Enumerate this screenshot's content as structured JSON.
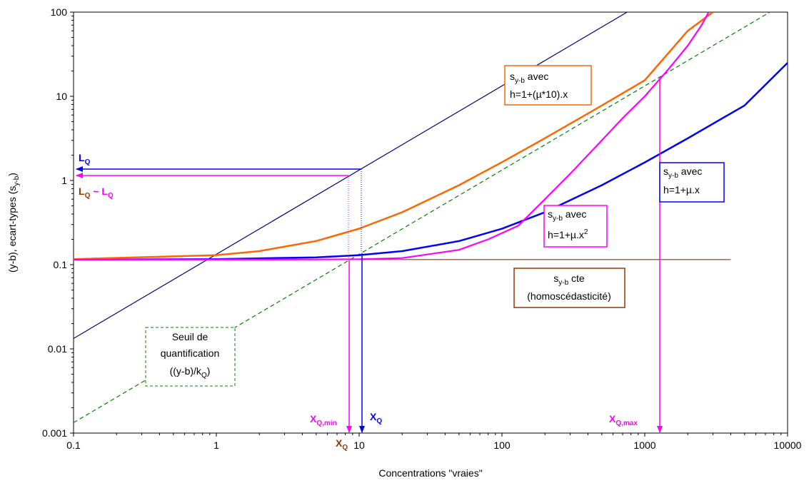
{
  "chart_data": {
    "type": "line",
    "xscale": "log",
    "yscale": "log",
    "xlim": [
      0.1,
      10000
    ],
    "ylim": [
      0.001,
      100
    ],
    "xlabel": "Concentrations \"vraies\"",
    "ylabel": "(y-b), ecart-types (s",
    "ylabel_sub": "y-b",
    "ylabel_end": ")",
    "x_ticks": [
      "0.1",
      "1",
      "10",
      "100",
      "1000",
      "10000"
    ],
    "y_ticks": [
      "0.001",
      "0.01",
      "0.1",
      "1",
      "10",
      "100"
    ],
    "grid": false,
    "legend": "none",
    "series": [
      {
        "key": "yb",
        "color": "#000080",
        "x": [
          0.1,
          10000
        ],
        "y": [
          0.0133,
          1330
        ]
      },
      {
        "key": "seuil",
        "color": "#008000",
        "dashed": true,
        "x": [
          0.1,
          10000
        ],
        "y": [
          0.00133,
          133
        ]
      },
      {
        "key": "cte",
        "color": "#993300",
        "x": [
          0.1,
          4000
        ],
        "y": [
          0.115,
          0.115
        ]
      },
      {
        "key": "lin",
        "color": "#0000ff",
        "x": [
          0.1,
          1,
          5,
          10,
          20,
          50,
          100,
          200,
          500,
          1000,
          2000,
          5000,
          10000
        ],
        "y": [
          0.1151,
          0.1164,
          0.1223,
          0.1299,
          0.145,
          0.1908,
          0.2674,
          0.4205,
          0.8796,
          1.64,
          3.17,
          7.79,
          25
        ]
      },
      {
        "key": "mu10",
        "color": "#ff6600",
        "x": [
          0.1,
          1,
          2,
          5,
          10,
          20,
          50,
          100,
          200,
          500,
          1000,
          2000,
          3000
        ],
        "y": [
          0.1164,
          0.13,
          0.145,
          0.191,
          0.268,
          0.42,
          0.88,
          1.65,
          3.18,
          7.78,
          15.5,
          60,
          100
        ]
      },
      {
        "key": "quad",
        "color": "#ff00ff",
        "x": [
          0.1,
          5,
          10,
          20,
          50,
          80,
          130,
          200,
          300,
          500,
          700,
          1000,
          1500,
          2000,
          2500,
          2800
        ],
        "y": [
          0.115,
          0.1153,
          0.1163,
          0.12,
          0.15,
          0.2,
          0.29,
          0.6,
          1.2,
          3,
          5.5,
          10,
          22,
          40,
          70,
          100
        ]
      }
    ],
    "annotations": {
      "lq": "L",
      "lq_sub": "Q",
      "lq2_a": "L",
      "lq2_a_sub": "Q",
      "lq2_mid": " ~ ",
      "lq2_b": "L",
      "lq2_b_sub": "Q",
      "xq": "X",
      "xq_sub": "Q",
      "xqmin": "X",
      "xqmin_sub": "Q,min",
      "xq2": "X",
      "xq2_sub": "Q",
      "xqmax": "X",
      "xqmax_sub": "Q,max"
    },
    "boxes": {
      "orange": {
        "s": "s",
        "sub": "y-b",
        "avec": " avec",
        "line2": "h=1+(µ*10).x"
      },
      "magenta": {
        "s": "s",
        "sub": "y-b",
        "avec": " avec",
        "line2": "h=1+µ.x",
        "sup": "2"
      },
      "blue": {
        "s": "s",
        "sub": "y-b",
        "avec": " avec",
        "line2": "h=1+µ.x"
      },
      "brown": {
        "s": "s",
        "sub": "y-b",
        "cte": " cte",
        "line2": "(homoscédasticité)"
      },
      "green": {
        "line1": "Seuil de",
        "line2": "quantification",
        "line3": "((y-b)/k",
        "sub": "Q",
        "end": ")"
      }
    },
    "colors": {
      "navy": "#000080",
      "green": "#008000",
      "brown": "#993300",
      "blue": "#0000ff",
      "orange": "#ff6600",
      "magenta": "#ff00ff"
    }
  }
}
